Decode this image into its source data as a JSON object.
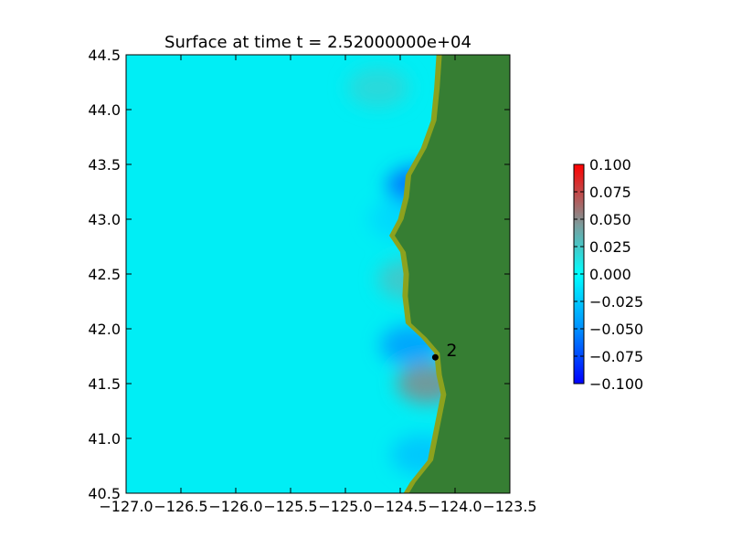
{
  "chart_data": {
    "type": "heatmap",
    "title": "Surface at time t = 2.52000000e+04",
    "xlabel": "",
    "ylabel": "",
    "xlim": [
      -127.0,
      -123.5
    ],
    "ylim": [
      40.5,
      44.5
    ],
    "x_ticks": [
      -127.0,
      -126.5,
      -126.0,
      -125.5,
      -125.0,
      -124.5,
      -124.0,
      -123.5
    ],
    "x_tick_labels": [
      "−127.0",
      "−126.5",
      "−126.0",
      "−125.5",
      "−125.0",
      "−124.5",
      "−124.0",
      "−123.5"
    ],
    "y_ticks": [
      40.5,
      41.0,
      41.5,
      42.0,
      42.5,
      43.0,
      43.5,
      44.0,
      44.5
    ],
    "y_tick_labels": [
      "40.5",
      "41.0",
      "41.5",
      "42.0",
      "42.5",
      "43.0",
      "43.5",
      "44.0",
      "44.5"
    ],
    "colorbar": {
      "vmin": -0.1,
      "vmax": 0.1,
      "ticks": [
        -0.1,
        -0.075,
        -0.05,
        -0.025,
        0.0,
        0.025,
        0.05,
        0.075,
        0.1
      ],
      "tick_labels": [
        "−0.100",
        "−0.075",
        "−0.050",
        "−0.025",
        "0.000",
        "0.025",
        "0.050",
        "0.075",
        "0.100"
      ],
      "colors": [
        "#0000ff",
        "#00ffff",
        "#ff0000"
      ]
    },
    "colors": {
      "ocean": "#00eef5",
      "land": "#367e33",
      "shore": "#8ca21e"
    },
    "coastline": [
      [
        -124.12,
        44.5
      ],
      [
        -124.14,
        44.2
      ],
      [
        -124.17,
        43.9
      ],
      [
        -124.26,
        43.65
      ],
      [
        -124.4,
        43.4
      ],
      [
        -124.42,
        43.2
      ],
      [
        -124.47,
        43.0
      ],
      [
        -124.55,
        42.85
      ],
      [
        -124.45,
        42.7
      ],
      [
        -124.42,
        42.5
      ],
      [
        -124.43,
        42.3
      ],
      [
        -124.4,
        42.05
      ],
      [
        -124.26,
        41.92
      ],
      [
        -124.14,
        41.78
      ],
      [
        -124.12,
        41.58
      ],
      [
        -124.08,
        41.4
      ],
      [
        -124.12,
        41.2
      ],
      [
        -124.16,
        41.0
      ],
      [
        -124.2,
        40.8
      ],
      [
        -124.36,
        40.6
      ],
      [
        -124.42,
        40.5
      ]
    ],
    "anomalies": [
      {
        "lon": -124.34,
        "lat": 43.3,
        "value": -0.07
      },
      {
        "lon": -124.5,
        "lat": 43.0,
        "value": -0.02
      },
      {
        "lon": -124.42,
        "lat": 42.45,
        "value": 0.03
      },
      {
        "lon": -124.4,
        "lat": 41.85,
        "value": -0.05
      },
      {
        "lon": -124.25,
        "lat": 41.5,
        "value": 0.055
      },
      {
        "lon": -124.7,
        "lat": 44.2,
        "value": 0.02
      },
      {
        "lon": -124.3,
        "lat": 40.85,
        "value": -0.03
      }
    ],
    "gauges": [
      {
        "label": "2",
        "lon": -124.18,
        "lat": 41.74
      }
    ]
  }
}
